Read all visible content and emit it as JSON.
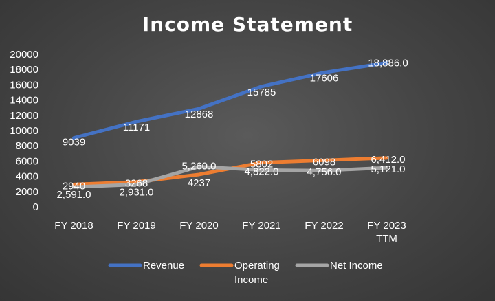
{
  "chart_data": {
    "type": "line",
    "title": "Income Statement",
    "xlabel": "",
    "ylabel": "",
    "categories": [
      "FY 2018",
      "FY 2019",
      "FY 2020",
      "FY 2021",
      "FY 2022",
      "FY 2023 TTM"
    ],
    "category_lines": [
      [
        "FY 2018"
      ],
      [
        "FY 2019"
      ],
      [
        "FY 2020"
      ],
      [
        "FY 2021"
      ],
      [
        "FY 2022"
      ],
      [
        "FY 2023",
        "TTM"
      ]
    ],
    "ylim": [
      0,
      20000
    ],
    "yticks": [
      "0",
      "2000",
      "4000",
      "6000",
      "8000",
      "10000",
      "12000",
      "14000",
      "16000",
      "18000",
      "20000"
    ],
    "grid": false,
    "legend_position": "bottom",
    "series": [
      {
        "name": "Revenue",
        "name_lines": [
          "Revenue"
        ],
        "color": "#4472C4",
        "values": [
          9039,
          11171,
          12868,
          15785,
          17606,
          18886
        ],
        "labels": [
          "9039",
          "11171",
          "12868",
          "15785",
          "17606",
          "18,886.0"
        ]
      },
      {
        "name": "Operating Income",
        "name_lines": [
          "Operating",
          "Income"
        ],
        "color": "#ED7D31",
        "values": [
          2940,
          3268,
          4237,
          5802,
          6098,
          6412
        ],
        "labels": [
          "2940",
          "3268",
          "4237",
          "5802",
          "6098",
          "6,412.0"
        ]
      },
      {
        "name": "Net Income",
        "name_lines": [
          "Net Income"
        ],
        "color": "#A5A5A5",
        "values": [
          2591,
          2931,
          5260,
          4822,
          4756,
          5121
        ],
        "labels": [
          "2,591.0",
          "2,931.0",
          "5,260.0",
          "4,822.0",
          "4,756.0",
          "5,121.0"
        ]
      }
    ]
  }
}
